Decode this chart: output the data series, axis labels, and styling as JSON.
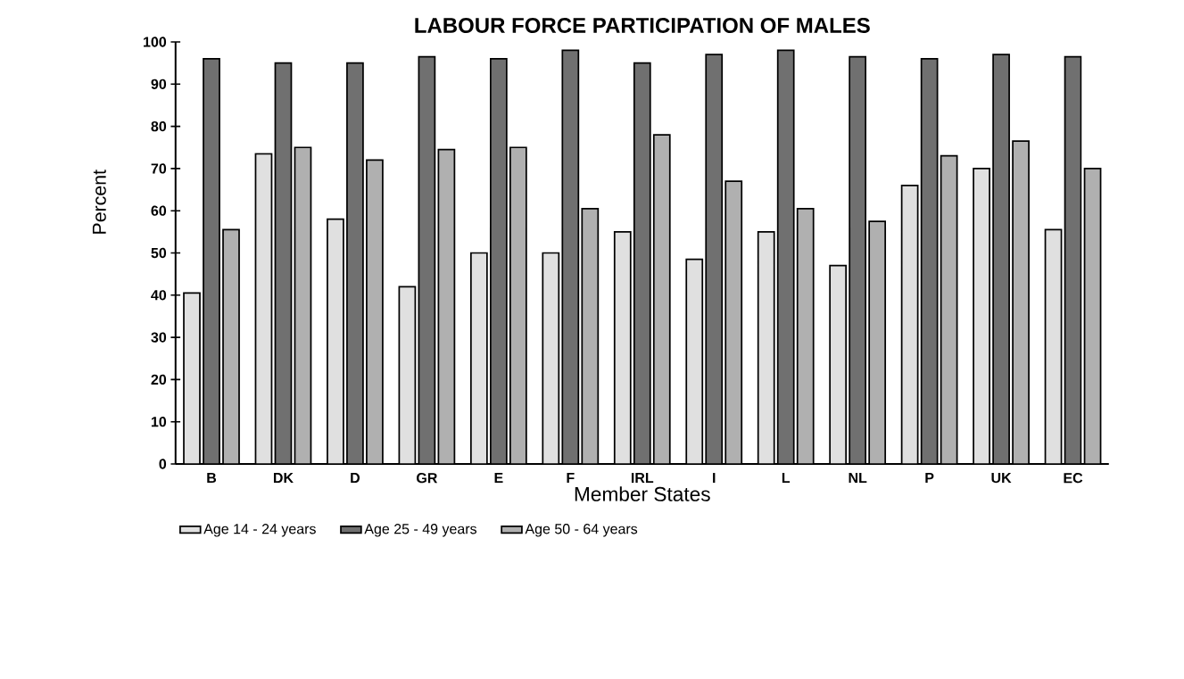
{
  "chart_data": {
    "type": "bar",
    "title": "LABOUR FORCE PARTICIPATION OF MALES",
    "xlabel": "Member States",
    "ylabel": "Percent",
    "categories": [
      "B",
      "DK",
      "D",
      "GR",
      "E",
      "F",
      "IRL",
      "I",
      "L",
      "NL",
      "P",
      "UK",
      "EC"
    ],
    "series": [
      {
        "name": "Age 14 - 24 years",
        "color": "#e0e0e0",
        "values": [
          40.5,
          73.5,
          58,
          42,
          50,
          50,
          55,
          48.5,
          55,
          47,
          66,
          70,
          55.5
        ]
      },
      {
        "name": "Age 25 - 49 years",
        "color": "#707070",
        "values": [
          96,
          95,
          95,
          96.5,
          96,
          98,
          95,
          97,
          98,
          96.5,
          96,
          97,
          96.5
        ]
      },
      {
        "name": "Age 50 - 64 years",
        "color": "#b0b0b0",
        "values": [
          55.5,
          75,
          72,
          74.5,
          75,
          60.5,
          78,
          67,
          60.5,
          57.5,
          73,
          76.5,
          70
        ]
      }
    ],
    "ylim": [
      0,
      100
    ],
    "yticks": [
      0,
      10,
      20,
      30,
      40,
      50,
      60,
      70,
      80,
      90,
      100
    ],
    "grid": false,
    "legend": "bottom"
  }
}
